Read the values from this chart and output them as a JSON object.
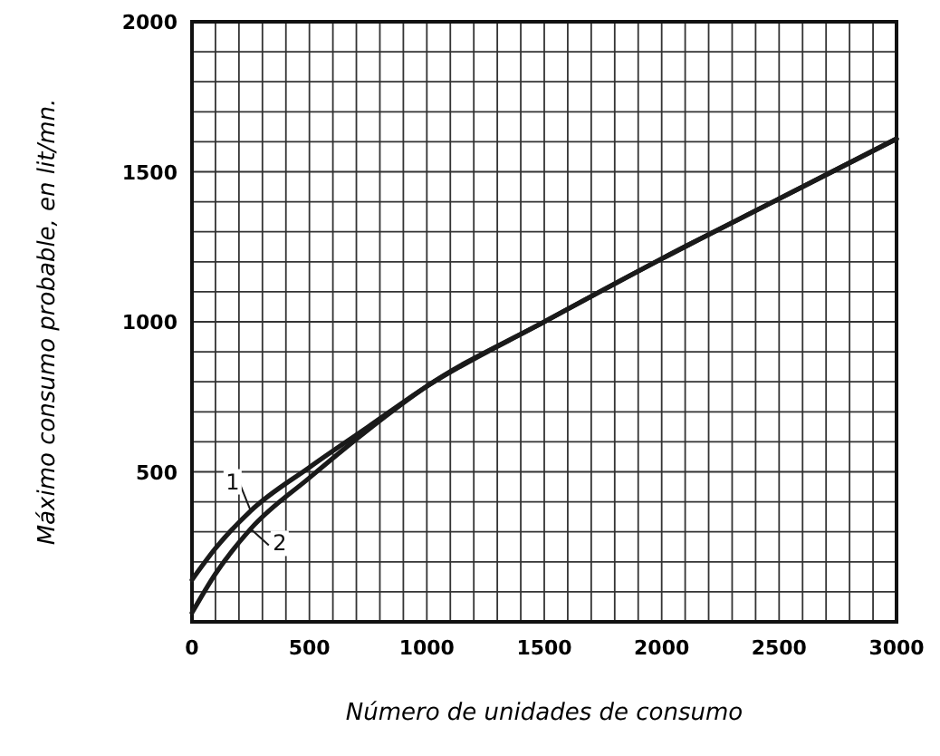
{
  "chart_data": {
    "type": "line",
    "xlabel": "Número de unidades de consumo",
    "ylabel": "Máximo consumo probable, en lit/mn.",
    "x": [
      0,
      100,
      250,
      500,
      750,
      1000,
      1500,
      2000,
      2500,
      3000
    ],
    "series": [
      {
        "name": "1",
        "color": "#1a1a1a",
        "values": [
          140,
          245,
          370,
          515,
          650,
          785,
          1000,
          1210,
          1410,
          1610
        ]
      },
      {
        "name": "2",
        "color": "#1a1a1a",
        "values": [
          30,
          160,
          310,
          480,
          640,
          785,
          1000,
          1210,
          1410,
          1610
        ]
      }
    ],
    "xlim": [
      0,
      3000
    ],
    "ylim": [
      0,
      2000
    ],
    "xticks": [
      0,
      {
        "value": 100,
        "label": null
      },
      {
        "value": 200,
        "label": null
      },
      {
        "value": 300,
        "label": null
      },
      {
        "value": 400,
        "label": null
      },
      500,
      {
        "value": 600,
        "label": null
      },
      {
        "value": 700,
        "label": null
      },
      {
        "value": 800,
        "label": null
      },
      {
        "value": 900,
        "label": null
      },
      1000,
      {
        "value": 1100,
        "label": null
      },
      {
        "value": 1200,
        "label": null
      },
      {
        "value": 1300,
        "label": null
      },
      {
        "value": 1400,
        "label": null
      },
      1500,
      {
        "value": 1600,
        "label": null
      },
      {
        "value": 1700,
        "label": null
      },
      {
        "value": 1800,
        "label": null
      },
      {
        "value": 1900,
        "label": null
      },
      2000,
      {
        "value": 2100,
        "label": null
      },
      {
        "value": 2200,
        "label": null
      },
      {
        "value": 2300,
        "label": null
      },
      {
        "value": 2400,
        "label": null
      },
      2500,
      {
        "value": 2600,
        "label": null
      },
      {
        "value": 2700,
        "label": null
      },
      {
        "value": 2800,
        "label": null
      },
      {
        "value": 2900,
        "label": null
      },
      3000
    ],
    "yticks": [
      {
        "value": 0,
        "label": null
      },
      {
        "value": 100,
        "label": null
      },
      {
        "value": 200,
        "label": null
      },
      {
        "value": 300,
        "label": null
      },
      {
        "value": 400,
        "label": null
      },
      500,
      {
        "value": 600,
        "label": null
      },
      {
        "value": 700,
        "label": null
      },
      {
        "value": 800,
        "label": null
      },
      {
        "value": 900,
        "label": null
      },
      1000,
      {
        "value": 1100,
        "label": null
      },
      {
        "value": 1200,
        "label": null
      },
      {
        "value": 1300,
        "label": null
      },
      {
        "value": 1400,
        "label": null
      },
      1500,
      {
        "value": 1600,
        "label": null
      },
      {
        "value": 1700,
        "label": null
      },
      {
        "value": 1800,
        "label": null
      },
      {
        "value": 1900,
        "label": null
      },
      2000
    ],
    "grid": true,
    "marker": "none",
    "line_style": "solid"
  }
}
